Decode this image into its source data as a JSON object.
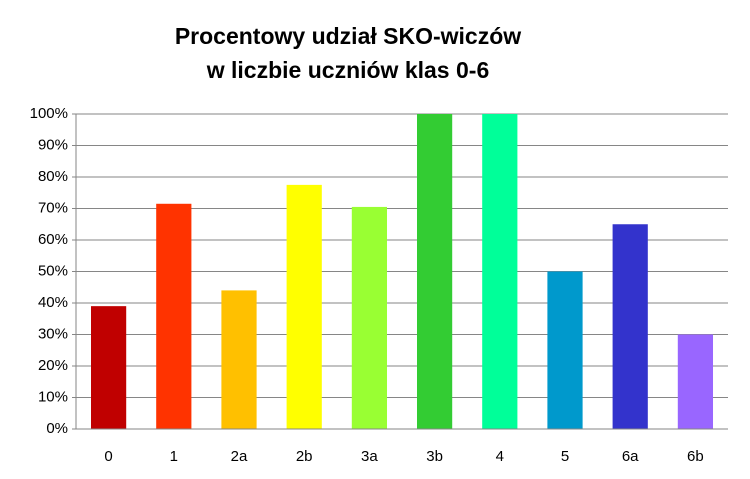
{
  "chart_data": {
    "type": "bar",
    "title": [
      "Procentowy udział SKO-wiczów",
      "w liczbie uczniów klas 0-6"
    ],
    "categories": [
      "0",
      "1",
      "2a",
      "2b",
      "3a",
      "3b",
      "4",
      "5",
      "6a",
      "6b"
    ],
    "values": [
      39,
      71.5,
      44,
      77.5,
      70.5,
      100,
      100,
      50,
      65,
      30
    ],
    "colors": [
      "#c00000",
      "#ff3300",
      "#ffc000",
      "#ffff00",
      "#99ff33",
      "#33cc33",
      "#00ff99",
      "#0099cc",
      "#3333cc",
      "#9966ff"
    ],
    "ylim": [
      0,
      100
    ],
    "yticks": [
      {
        "value": 0,
        "label": "0%"
      },
      {
        "value": 10,
        "label": "10%"
      },
      {
        "value": 20,
        "label": "20%"
      },
      {
        "value": 30,
        "label": "30%"
      },
      {
        "value": 40,
        "label": "40%"
      },
      {
        "value": 50,
        "label": "50%"
      },
      {
        "value": 60,
        "label": "60%"
      },
      {
        "value": 70,
        "label": "70%"
      },
      {
        "value": 80,
        "label": "80%"
      },
      {
        "value": 90,
        "label": "90%"
      },
      {
        "value": 100,
        "label": "100%"
      }
    ],
    "grid": true
  }
}
